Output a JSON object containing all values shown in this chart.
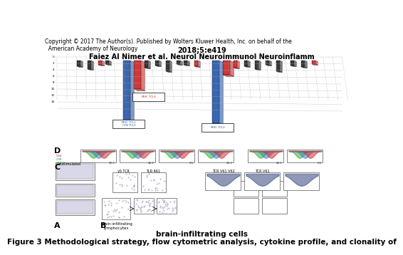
{
  "title_line1": "Figure 3 Methodological strategy, flow cytometric analysis, cytokine profile, and clonality of",
  "title_line2": "brain-infiltrating cells",
  "citation_line1": "Faiez Al Nimer et al. Neurol Neuroimmunol Neuroinflamm",
  "citation_line2": "2018;5:e419",
  "copyright": "Copyright © 2017 The Author(s). Published by Wolters Kluwer Health, Inc. on behalf of the\n  American Academy of Neurology",
  "bg_color": "#ffffff",
  "title_fontsize": 7.5,
  "citation_fontsize": 7.0,
  "copyright_fontsize": 5.5,
  "panel_label_fontsize": 8,
  "panel_A_label": "A",
  "panel_B_label": "B",
  "panel_C_label": "C",
  "panel_D_label": "D",
  "bar_blue": "#2255aa",
  "bar_red": "#cc2222",
  "bar_dark": "#222222",
  "grid_color": "#aaaaaa",
  "histogram_colors": [
    "#22aa22",
    "#3377cc",
    "#cc2222"
  ],
  "flow_dot_color": "#aaaacc",
  "box_color": "#dddddd"
}
